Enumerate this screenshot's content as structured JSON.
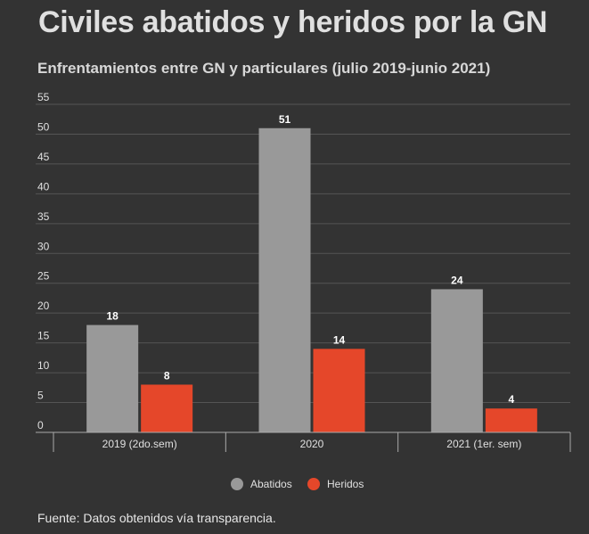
{
  "header": {
    "title": "Civiles abatidos y heridos por la GN",
    "subtitle": "Enfrentamientos entre GN y particulares (julio 2019-junio 2021)"
  },
  "footer": {
    "source": "Fuente: Datos obtenidos vía transparencia."
  },
  "chart_data": {
    "type": "bar",
    "title": "Civiles abatidos y heridos por la GN",
    "subtitle": "Enfrentamientos entre GN y particulares (julio 2019-junio 2021)",
    "categories": [
      "2019 (2do.sem)",
      "2020",
      "2021 (1er. sem)"
    ],
    "series": [
      {
        "name": "Abatidos",
        "values": [
          18,
          51,
          24
        ],
        "color": "#999999"
      },
      {
        "name": "Heridos",
        "values": [
          8,
          14,
          4
        ],
        "color": "#e5472a"
      }
    ],
    "ylim": [
      0,
      55
    ],
    "yticks": [
      0,
      5,
      10,
      15,
      20,
      25,
      30,
      35,
      40,
      45,
      50,
      55
    ],
    "grid": true,
    "legend": "bottom-center",
    "xlabel": "",
    "ylabel": ""
  }
}
